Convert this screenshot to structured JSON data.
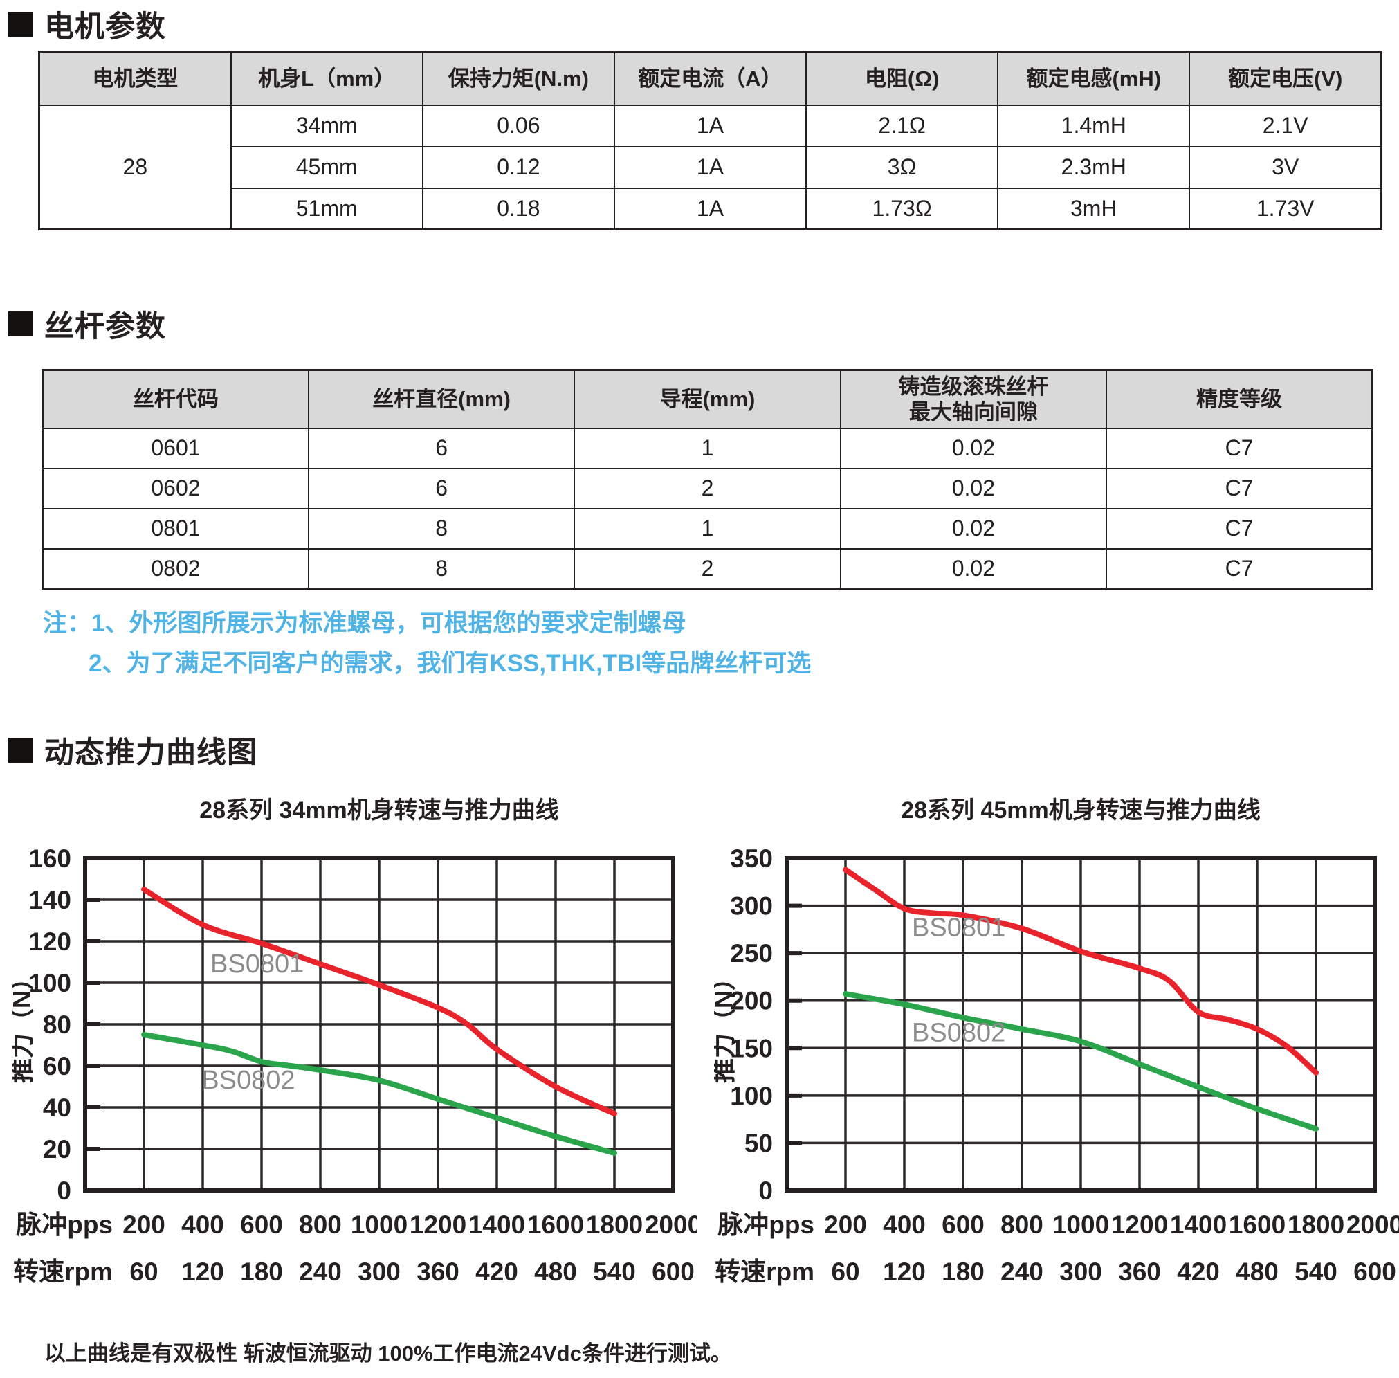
{
  "sections": {
    "motor": {
      "title": "电机参数"
    },
    "screw": {
      "title": "丝杆参数"
    },
    "curves": {
      "title": "动态推力曲线图"
    }
  },
  "motor_table": {
    "headers": [
      "电机类型",
      "机身L（mm）",
      "保持力矩(N.m)",
      "额定电流（A）",
      "电阻(Ω)",
      "额定电感(mH)",
      "额定电压(V)"
    ],
    "motor_type": "28",
    "rows": [
      [
        "34mm",
        "0.06",
        "1A",
        "2.1Ω",
        "1.4mH",
        "2.1V"
      ],
      [
        "45mm",
        "0.12",
        "1A",
        "3Ω",
        "2.3mH",
        "3V"
      ],
      [
        "51mm",
        "0.18",
        "1A",
        "1.73Ω",
        "3mH",
        "1.73V"
      ]
    ]
  },
  "screw_table": {
    "headers": [
      "丝杆代码",
      "丝杆直径(mm)",
      "导程(mm)",
      "铸造级滚珠丝杆\n最大轴向间隙",
      "精度等级"
    ],
    "rows": [
      [
        "0601",
        "6",
        "1",
        "0.02",
        "C7"
      ],
      [
        "0602",
        "6",
        "2",
        "0.02",
        "C7"
      ],
      [
        "0801",
        "8",
        "1",
        "0.02",
        "C7"
      ],
      [
        "0802",
        "8",
        "2",
        "0.02",
        "C7"
      ]
    ]
  },
  "notes": {
    "line1": "注：1、外形图所展示为标准螺母，可根据您的要求定制螺母",
    "line2": "2、为了满足不同客户的需求，我们有KSS,THK,TBI等品牌丝杆可选"
  },
  "footer_note": "以上曲线是有双极性 斩波恒流驱动 100%工作电流24Vdc条件进行测试。",
  "colors": {
    "ink": "#242021",
    "grid": "#2d2929",
    "note_blue": "#4fb3e6",
    "table_header_bg": "#d9d9d9",
    "label_gray": "#8c8c8c",
    "series_red": "#e8232b",
    "series_green": "#2aa54c"
  },
  "chart_data": [
    {
      "type": "line",
      "title": "28系列 34mm机身转速与推力曲线",
      "ylabel": "推力（N）",
      "xlabel": "",
      "ylim": [
        0,
        160
      ],
      "ystep": 20,
      "xlim": [
        0,
        2000
      ],
      "xstep": 200,
      "grid": true,
      "legend_position": "inline-gray-labels",
      "x_axis_rows": [
        {
          "label": "脉冲pps",
          "values": [
            "200",
            "400",
            "600",
            "800",
            "1000",
            "1200",
            "1400",
            "1600",
            "1800",
            "2000"
          ]
        },
        {
          "label": "转速rpm",
          "values": [
            "60",
            "120",
            "180",
            "240",
            "300",
            "360",
            "420",
            "480",
            "540",
            "600"
          ]
        }
      ],
      "series": [
        {
          "name": "BS0801",
          "color": "#e8232b",
          "label_pos": [
            585,
            105
          ],
          "points": [
            [
              200,
              145
            ],
            [
              400,
              128
            ],
            [
              600,
              119
            ],
            [
              800,
              109
            ],
            [
              1000,
              99
            ],
            [
              1200,
              88
            ],
            [
              1300,
              80
            ],
            [
              1400,
              68
            ],
            [
              1600,
              50
            ],
            [
              1800,
              37
            ]
          ]
        },
        {
          "name": "BS0802",
          "color": "#2aa54c",
          "label_pos": [
            555,
            49
          ],
          "points": [
            [
              200,
              75
            ],
            [
              400,
              70
            ],
            [
              500,
              67
            ],
            [
              600,
              62
            ],
            [
              700,
              60
            ],
            [
              800,
              58
            ],
            [
              1000,
              53
            ],
            [
              1200,
              44
            ],
            [
              1400,
              35
            ],
            [
              1600,
              26
            ],
            [
              1800,
              18
            ]
          ]
        }
      ]
    },
    {
      "type": "line",
      "title": "28系列 45mm机身转速与推力曲线",
      "ylabel": "推力（N）",
      "xlabel": "",
      "ylim": [
        0,
        350
      ],
      "ystep": 50,
      "xlim": [
        0,
        2000
      ],
      "xstep": 200,
      "grid": true,
      "legend_position": "inline-gray-labels",
      "x_axis_rows": [
        {
          "label": "脉冲pps",
          "values": [
            "200",
            "400",
            "600",
            "800",
            "1000",
            "1200",
            "1400",
            "1600",
            "1800",
            "2000"
          ]
        },
        {
          "label": "转速rpm",
          "values": [
            "60",
            "120",
            "180",
            "240",
            "300",
            "360",
            "420",
            "480",
            "540",
            "600"
          ]
        }
      ],
      "series": [
        {
          "name": "BS0801",
          "color": "#e8232b",
          "label_pos": [
            585,
            268
          ],
          "points": [
            [
              200,
              338
            ],
            [
              300,
              317
            ],
            [
              400,
              297
            ],
            [
              500,
              292
            ],
            [
              600,
              290
            ],
            [
              800,
              276
            ],
            [
              1000,
              252
            ],
            [
              1200,
              234
            ],
            [
              1300,
              221
            ],
            [
              1400,
              188
            ],
            [
              1500,
              180
            ],
            [
              1600,
              170
            ],
            [
              1700,
              152
            ],
            [
              1800,
              124
            ]
          ]
        },
        {
          "name": "BS0802",
          "color": "#2aa54c",
          "label_pos": [
            585,
            157
          ],
          "points": [
            [
              200,
              207
            ],
            [
              400,
              196
            ],
            [
              600,
              182
            ],
            [
              800,
              170
            ],
            [
              1000,
              157
            ],
            [
              1200,
              133
            ],
            [
              1400,
              109
            ],
            [
              1600,
              86
            ],
            [
              1800,
              65
            ]
          ]
        }
      ]
    }
  ]
}
